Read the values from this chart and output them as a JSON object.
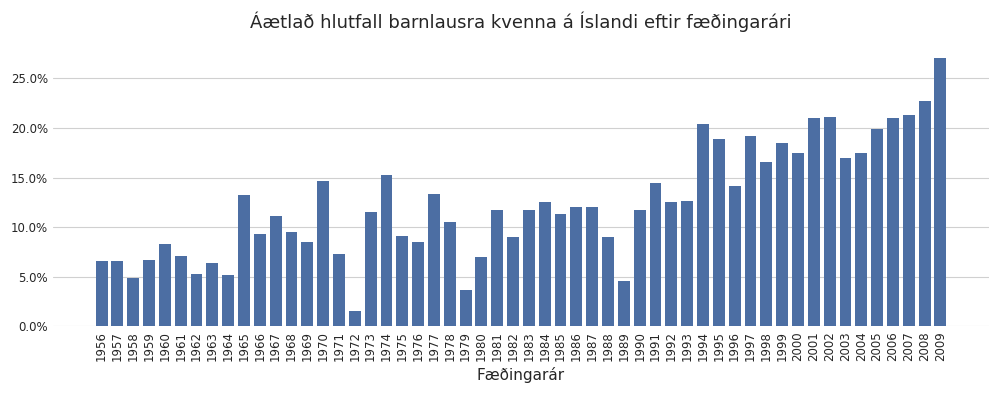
{
  "title": "Áætlað hlutfall barnlausra kvenna á Íslandi eftir fæðingarári",
  "xlabel": "Fæðingarár",
  "ylabel": "",
  "bar_color": "#4c6ea3",
  "background_color": "#ffffff",
  "grid_color": "#d0d0d0",
  "years": [
    1956,
    1957,
    1958,
    1959,
    1960,
    1961,
    1962,
    1963,
    1964,
    1965,
    1966,
    1967,
    1968,
    1969,
    1970,
    1971,
    1972,
    1973,
    1974,
    1975,
    1976,
    1977,
    1978,
    1979,
    1980,
    1981,
    1982,
    1983,
    1984,
    1985,
    1986,
    1987,
    1988,
    1989,
    1990,
    1991,
    1992,
    1993,
    1994,
    1995,
    1996,
    1997,
    1998,
    1999,
    2000,
    2001,
    2002,
    2003,
    2004,
    2005,
    2006,
    2007,
    2008,
    2009
  ],
  "values": [
    0.066,
    0.066,
    0.049,
    0.067,
    0.083,
    0.071,
    0.053,
    0.064,
    0.052,
    0.133,
    0.093,
    0.111,
    0.095,
    0.085,
    0.147,
    0.073,
    0.016,
    0.115,
    0.153,
    0.091,
    0.085,
    0.134,
    0.105,
    0.037,
    0.07,
    0.117,
    0.09,
    0.117,
    0.125,
    0.113,
    0.12,
    0.12,
    0.09,
    0.046,
    0.117,
    0.145,
    0.125,
    0.126,
    0.204,
    0.189,
    0.142,
    0.192,
    0.166,
    0.185,
    0.175,
    0.21,
    0.211,
    0.17,
    0.175,
    0.199,
    0.21,
    0.213,
    0.227,
    0.271
  ],
  "ylim": [
    0,
    0.29
  ],
  "yticks": [
    0.0,
    0.05,
    0.1,
    0.15,
    0.2,
    0.25
  ],
  "title_fontsize": 13,
  "axis_fontsize": 11,
  "tick_fontsize": 8.5
}
